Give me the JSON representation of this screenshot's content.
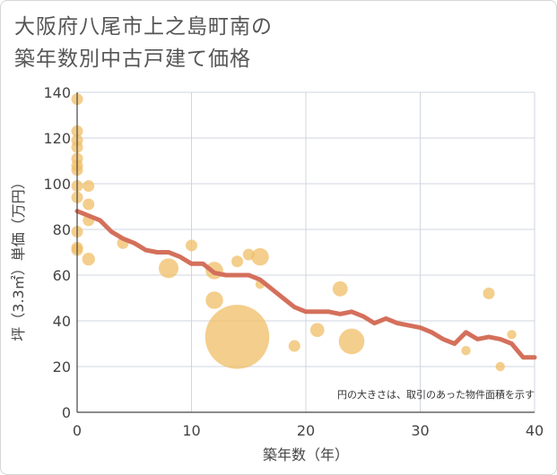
{
  "title": {
    "line1": "大阪府八尾市上之島町南の",
    "line2": "築年数別中古戸建て価格"
  },
  "colors": {
    "bubble": "#f0bd66",
    "line": "#d4705b",
    "grid": "#d0d5e0",
    "axis": "#444444"
  },
  "chart_data": {
    "type": "scatter",
    "xlabel": "築年数（年）",
    "ylabel": "坪（3.3㎡）単価（万円）",
    "xlim": [
      0,
      40
    ],
    "ylim": [
      0,
      140
    ],
    "xticks": [
      0,
      10,
      20,
      30,
      40
    ],
    "yticks": [
      0,
      20,
      40,
      60,
      80,
      100,
      120,
      140
    ],
    "grid": true,
    "note": "円の大きさは、取引のあった物件面積を示す",
    "bubbles": [
      {
        "x": 0,
        "y": 137,
        "size": 1.0
      },
      {
        "x": 0,
        "y": 123,
        "size": 1.0
      },
      {
        "x": 0,
        "y": 119,
        "size": 1.0
      },
      {
        "x": 0,
        "y": 116,
        "size": 1.0
      },
      {
        "x": 0,
        "y": 111,
        "size": 1.0
      },
      {
        "x": 0,
        "y": 108,
        "size": 1.0
      },
      {
        "x": 0,
        "y": 106,
        "size": 1.0
      },
      {
        "x": 0,
        "y": 99,
        "size": 1.0
      },
      {
        "x": 0,
        "y": 94,
        "size": 1.0
      },
      {
        "x": 0,
        "y": 79,
        "size": 1.0
      },
      {
        "x": 0,
        "y": 72,
        "size": 1.0
      },
      {
        "x": 0,
        "y": 71,
        "size": 1.0
      },
      {
        "x": 1,
        "y": 99,
        "size": 1.0
      },
      {
        "x": 1,
        "y": 91,
        "size": 1.0
      },
      {
        "x": 1,
        "y": 84,
        "size": 1.0
      },
      {
        "x": 1,
        "y": 67,
        "size": 1.1
      },
      {
        "x": 4,
        "y": 74,
        "size": 1.0
      },
      {
        "x": 8,
        "y": 63,
        "size": 1.7
      },
      {
        "x": 10,
        "y": 73,
        "size": 1.0
      },
      {
        "x": 12,
        "y": 62,
        "size": 1.5
      },
      {
        "x": 12,
        "y": 49,
        "size": 1.5
      },
      {
        "x": 14,
        "y": 33,
        "size": 5.5
      },
      {
        "x": 14,
        "y": 66,
        "size": 1.0
      },
      {
        "x": 15,
        "y": 69,
        "size": 1.0
      },
      {
        "x": 16,
        "y": 68,
        "size": 1.5
      },
      {
        "x": 16,
        "y": 56,
        "size": 0.8
      },
      {
        "x": 19,
        "y": 29,
        "size": 1.0
      },
      {
        "x": 21,
        "y": 36,
        "size": 1.2
      },
      {
        "x": 23,
        "y": 54,
        "size": 1.3
      },
      {
        "x": 24,
        "y": 31,
        "size": 2.2
      },
      {
        "x": 34,
        "y": 27,
        "size": 0.8
      },
      {
        "x": 36,
        "y": 52,
        "size": 1.0
      },
      {
        "x": 37,
        "y": 20,
        "size": 0.8
      },
      {
        "x": 38,
        "y": 34,
        "size": 0.8
      }
    ],
    "trend": {
      "x": [
        0,
        1,
        2,
        3,
        4,
        5,
        6,
        7,
        8,
        9,
        10,
        11,
        12,
        13,
        14,
        15,
        16,
        17,
        18,
        19,
        20,
        21,
        22,
        23,
        24,
        25,
        26,
        27,
        28,
        29,
        30,
        31,
        32,
        33,
        34,
        35,
        36,
        37,
        38,
        39,
        40
      ],
      "y": [
        88,
        86,
        84,
        79,
        76,
        74,
        71,
        70,
        70,
        68,
        65,
        65,
        61,
        60,
        60,
        60,
        58,
        54,
        50,
        46,
        44,
        44,
        44,
        43,
        44,
        42,
        39,
        41,
        39,
        38,
        37,
        35,
        32,
        30,
        35,
        32,
        33,
        32,
        30,
        24,
        24
      ]
    }
  }
}
